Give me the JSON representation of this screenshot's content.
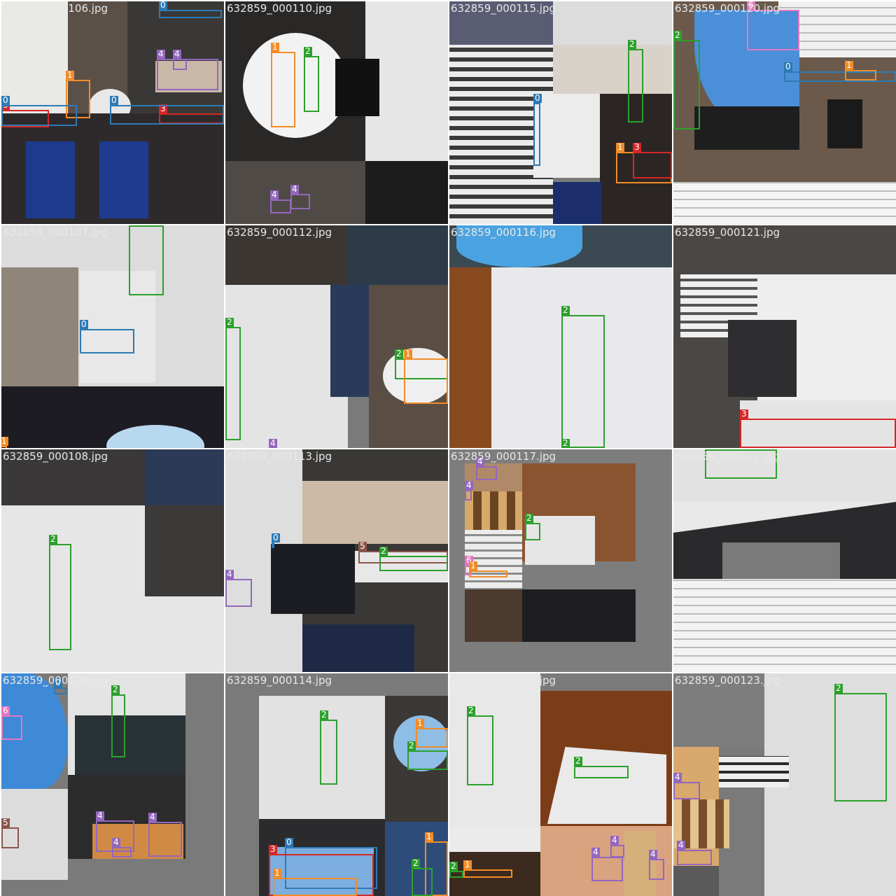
{
  "tiles": [
    {
      "filename": "632859_000106.jpg",
      "labels": [
        "0",
        "1",
        "3",
        "0",
        "4",
        "4",
        "3",
        "0"
      ]
    },
    {
      "filename": "632859_000110.jpg",
      "labels": [
        "1",
        "2",
        "4",
        "4"
      ]
    },
    {
      "filename": "632859_000115.jpg",
      "labels": [
        "2",
        "0",
        "1",
        "3"
      ]
    },
    {
      "filename": "632859_000120.jpg",
      "labels": [
        "6",
        "2",
        "0",
        "1"
      ]
    },
    {
      "filename": "632859_000107.jpg",
      "labels": [
        "2",
        "0",
        "1"
      ]
    },
    {
      "filename": "632859_000112.jpg",
      "labels": [
        "2",
        "2",
        "1",
        "4"
      ]
    },
    {
      "filename": "632859_000116.jpg",
      "labels": [
        "2",
        "2"
      ]
    },
    {
      "filename": "632859_000121.jpg",
      "labels": [
        "3"
      ]
    },
    {
      "filename": "632859_000108.jpg",
      "labels": [
        "2"
      ]
    },
    {
      "filename": "632859_000113.jpg",
      "labels": [
        "0",
        "4",
        "5",
        "2"
      ]
    },
    {
      "filename": "632859_000117.jpg",
      "labels": [
        "4",
        "4",
        "2",
        "6",
        "1"
      ]
    },
    {
      "filename": "632859_000122.jpg",
      "labels": [
        "2"
      ]
    },
    {
      "filename": "632859_000109.jpg",
      "labels": [
        "0",
        "2",
        "6",
        "4",
        "4",
        "4",
        "5"
      ]
    },
    {
      "filename": "632859_000114.jpg",
      "labels": [
        "2",
        "1",
        "2",
        "0",
        "3",
        "1",
        "1",
        "2"
      ]
    },
    {
      "filename": "632859_000119.jpg",
      "labels": [
        "2",
        "2",
        "2",
        "1",
        "4",
        "4",
        "4"
      ]
    },
    {
      "filename": "632859_000123.jpg",
      "labels": [
        "2",
        "4",
        "4"
      ]
    }
  ],
  "class_colors": {
    "0": "#2c7bb6",
    "1": "#f28c28",
    "2": "#2ca02c",
    "3": "#d62728",
    "4": "#9467bd",
    "5": "#8c564b",
    "6": "#e377c2"
  }
}
